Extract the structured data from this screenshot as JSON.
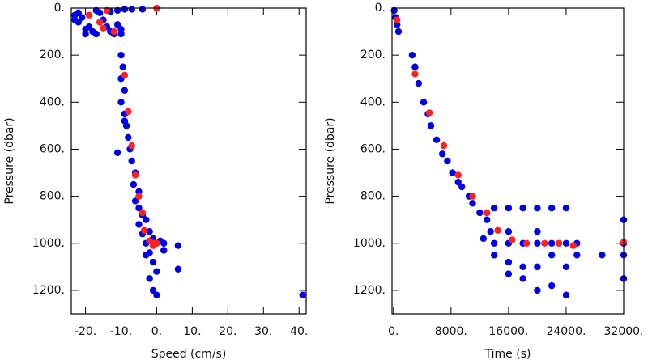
{
  "chart_data": [
    {
      "type": "scatter",
      "x_label": "Speed (cm/s)",
      "y_label": "Pressure (dbar)",
      "xlim": [
        -24,
        42
      ],
      "ylim": [
        1300,
        0
      ],
      "xticks": [
        {
          "value": -20,
          "label": "-20."
        },
        {
          "value": -10,
          "label": "-10."
        },
        {
          "value": 0,
          "label": "0."
        },
        {
          "value": 10,
          "label": "10."
        },
        {
          "value": 20,
          "label": "20."
        },
        {
          "value": 30,
          "label": "30."
        },
        {
          "value": 40,
          "label": "40."
        }
      ],
      "yticks": [
        {
          "value": 0,
          "label": "0."
        },
        {
          "value": 200,
          "label": "200."
        },
        {
          "value": 400,
          "label": "400."
        },
        {
          "value": 600,
          "label": "600."
        },
        {
          "value": 800,
          "label": "800."
        },
        {
          "value": 1000,
          "label": "1000."
        },
        {
          "value": 1200,
          "label": "1200."
        }
      ],
      "series": [
        {
          "color": "#0000ee",
          "x": [
            -23,
            -23,
            -22,
            -22,
            -21,
            -20,
            -20,
            -19,
            -18,
            -17,
            -16,
            -15,
            -14,
            -13,
            -12,
            -11,
            -10,
            -10,
            -13,
            -11,
            -9,
            -7,
            -4,
            -17,
            -10,
            -9.5,
            -10,
            -9,
            -10,
            -9,
            -8.5,
            -8,
            -9,
            -7.5,
            -7,
            -6,
            -6.5,
            -5,
            -6,
            -5,
            -4,
            -3,
            -5,
            -2,
            -4,
            -1,
            -3,
            1,
            2,
            -2,
            -1,
            0,
            -3,
            -2,
            -1,
            0,
            2,
            -11,
            6,
            6,
            41
          ],
          "y": [
            30,
            50,
            20,
            60,
            40,
            90,
            110,
            80,
            100,
            110,
            20,
            50,
            80,
            100,
            110,
            70,
            90,
            110,
            15,
            10,
            5,
            5,
            5,
            10,
            200,
            250,
            300,
            350,
            400,
            450,
            500,
            550,
            480,
            600,
            650,
            700,
            750,
            780,
            820,
            850,
            880,
            900,
            920,
            950,
            960,
            980,
            1000,
            990,
            1000,
            1040,
            1080,
            1120,
            1050,
            1150,
            1200,
            1220,
            1030,
            615,
            1010,
            1110,
            1220
          ]
        },
        {
          "color": "#ff2020",
          "x": [
            -19,
            -16,
            -14,
            -15,
            -12,
            0,
            -9,
            -8,
            -7,
            -6,
            -5,
            -4,
            -3.5,
            -2,
            -1,
            0,
            -1
          ],
          "y": [
            30,
            60,
            10,
            85,
            100,
            0,
            285,
            440,
            585,
            710,
            800,
            870,
            945,
            990,
            1000,
            1000,
            1010
          ]
        }
      ]
    },
    {
      "type": "scatter",
      "x_label": "Time (s)",
      "y_label": "Pressure (dbar)",
      "xlim": [
        -200,
        32000
      ],
      "ylim": [
        1300,
        0
      ],
      "xticks": [
        {
          "value": 0,
          "label": "0."
        },
        {
          "value": 8000,
          "label": "8000."
        },
        {
          "value": 16000,
          "label": "16000."
        },
        {
          "value": 24000,
          "label": "24000."
        },
        {
          "value": 32000,
          "label": "32000."
        }
      ],
      "yticks": [
        {
          "value": 0,
          "label": "0."
        },
        {
          "value": 200,
          "label": "200."
        },
        {
          "value": 400,
          "label": "400."
        },
        {
          "value": 600,
          "label": "600."
        },
        {
          "value": 800,
          "label": "800."
        },
        {
          "value": 1000,
          "label": "1000."
        },
        {
          "value": 1200,
          "label": "1200."
        }
      ],
      "series": [
        {
          "color": "#0000ee",
          "x": [
            100,
            300,
            500,
            700,
            2600,
            3000,
            3500,
            4200,
            4800,
            5200,
            6000,
            6800,
            7500,
            8200,
            9000,
            9500,
            10500,
            11000,
            12000,
            13000,
            13500,
            12500,
            14000,
            14000,
            14000,
            16000,
            16000,
            16000,
            16000,
            16000,
            18000,
            18000,
            18000,
            18000,
            20000,
            20000,
            20000,
            20000,
            20000,
            22000,
            22000,
            22000,
            22000,
            24000,
            24000,
            24000,
            24000,
            25500,
            25500,
            29000,
            32000,
            32000,
            32000,
            32000
          ],
          "y": [
            10,
            40,
            70,
            100,
            200,
            250,
            320,
            400,
            450,
            500,
            560,
            620,
            650,
            700,
            740,
            760,
            800,
            830,
            870,
            900,
            950,
            980,
            850,
            1000,
            1050,
            850,
            950,
            1000,
            1080,
            1130,
            850,
            1000,
            1100,
            1150,
            850,
            950,
            1000,
            1100,
            1200,
            850,
            1000,
            1050,
            1180,
            850,
            1000,
            1100,
            1220,
            1000,
            1050,
            1050,
            900,
            1000,
            1050,
            1150
          ]
        },
        {
          "color": "#ff2020",
          "x": [
            500,
            3000,
            5000,
            7000,
            9000,
            11000,
            13000,
            14500,
            16500,
            18500,
            21000,
            23000,
            25000,
            32000
          ],
          "y": [
            50,
            280,
            445,
            585,
            710,
            800,
            870,
            945,
            985,
            1000,
            1000,
            1000,
            1010,
            995
          ]
        }
      ]
    }
  ]
}
